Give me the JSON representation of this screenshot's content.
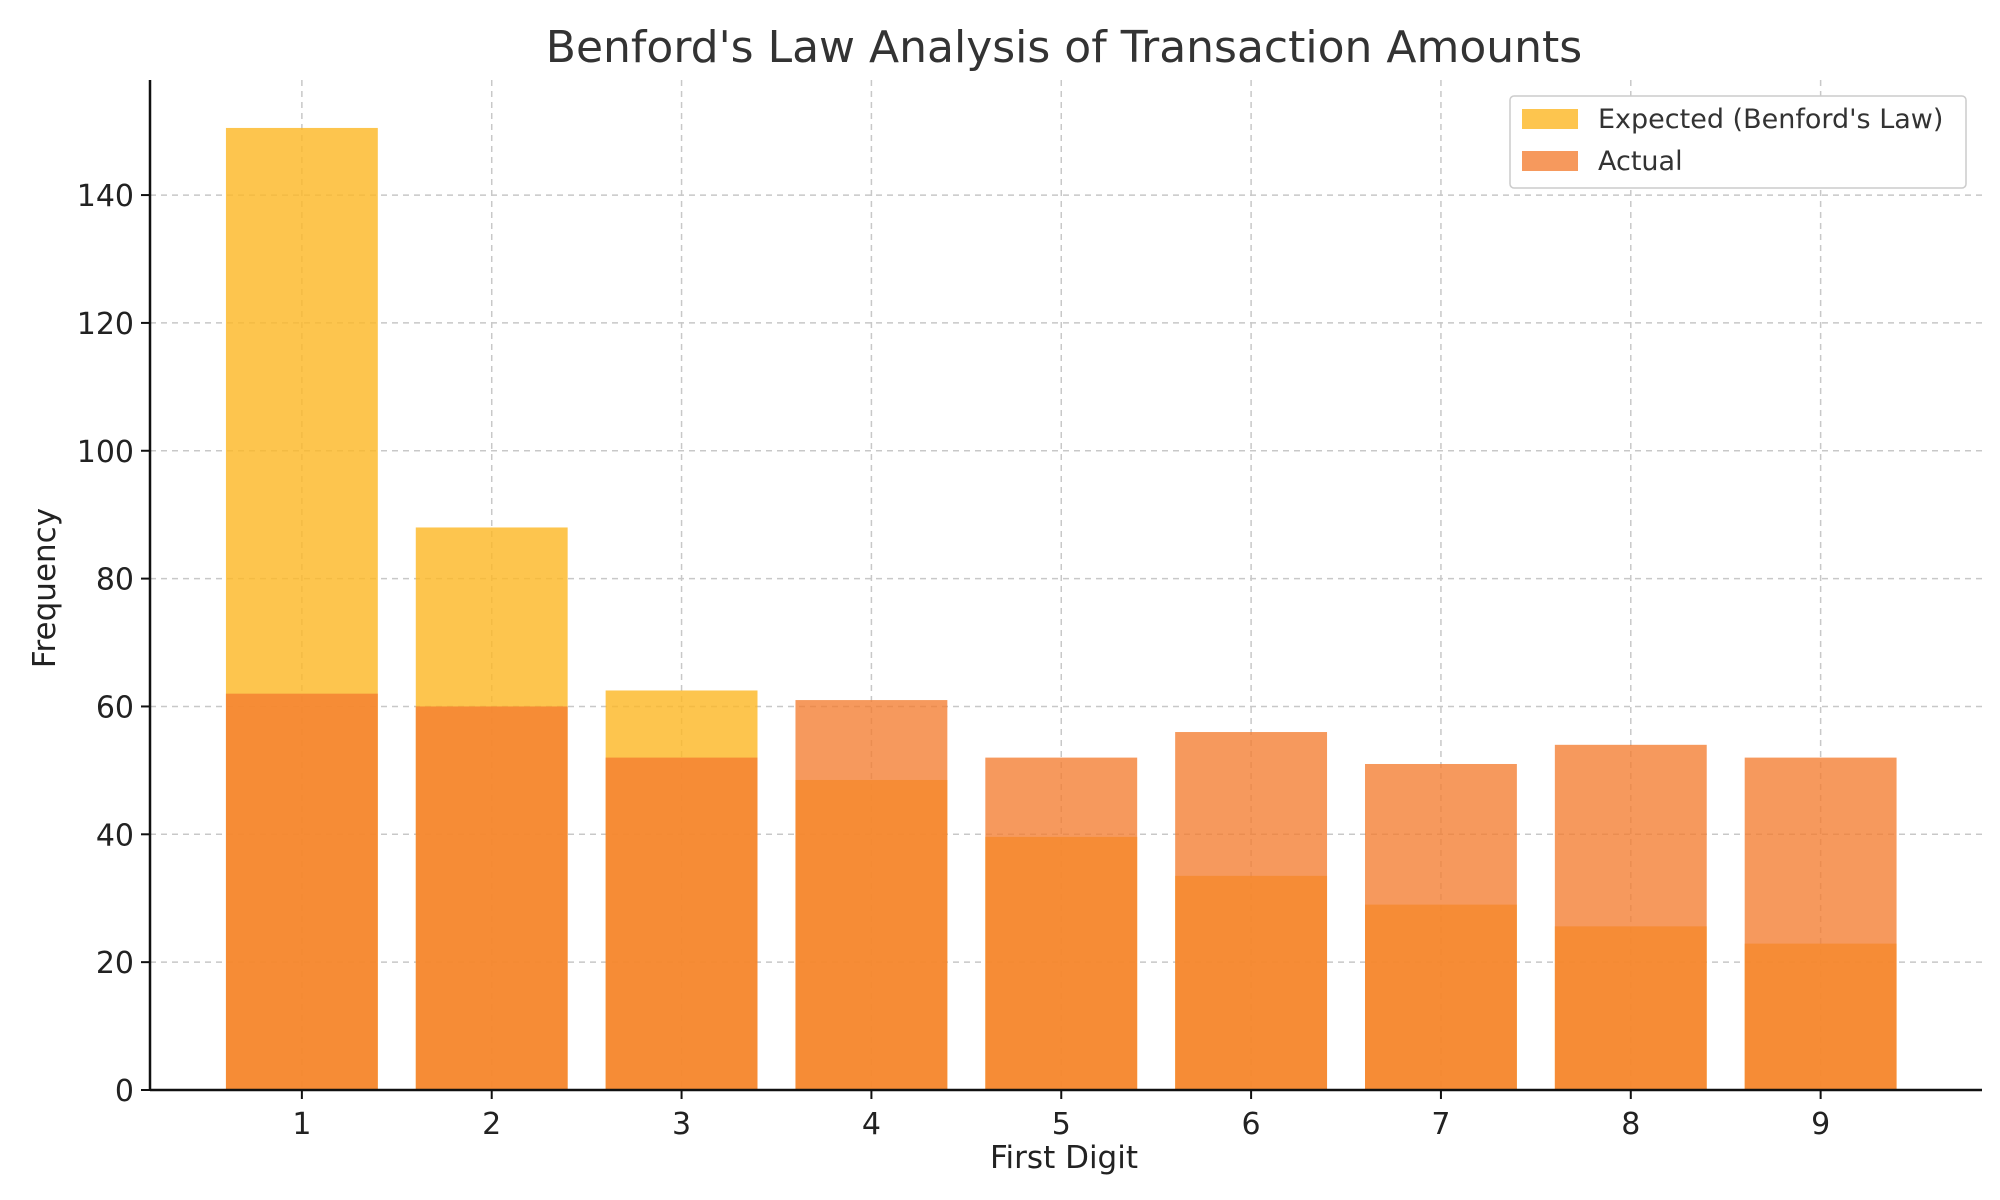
{
  "chart_data": {
    "type": "bar",
    "title": "Benford's Law Analysis of Transaction Amounts",
    "xlabel": "First Digit",
    "ylabel": "Frequency",
    "categories": [
      "1",
      "2",
      "3",
      "4",
      "5",
      "6",
      "7",
      "8",
      "9"
    ],
    "series": [
      {
        "name": "Expected (Benford's Law)",
        "color": "#fdb827",
        "opacity": 0.82,
        "values": [
          150.5,
          88.0,
          62.5,
          48.5,
          39.6,
          33.5,
          29.0,
          25.6,
          22.9
        ]
      },
      {
        "name": "Actual",
        "color": "#f47c30",
        "opacity": 0.78,
        "values": [
          62,
          60,
          52,
          61,
          52,
          56,
          51,
          54,
          52
        ]
      }
    ],
    "ylim": [
      0,
      158
    ],
    "xlim": [
      0.2,
      9.85
    ],
    "yticks": [
      0,
      20,
      40,
      60,
      80,
      100,
      120,
      140
    ],
    "grid": true,
    "legend": "top-right"
  }
}
